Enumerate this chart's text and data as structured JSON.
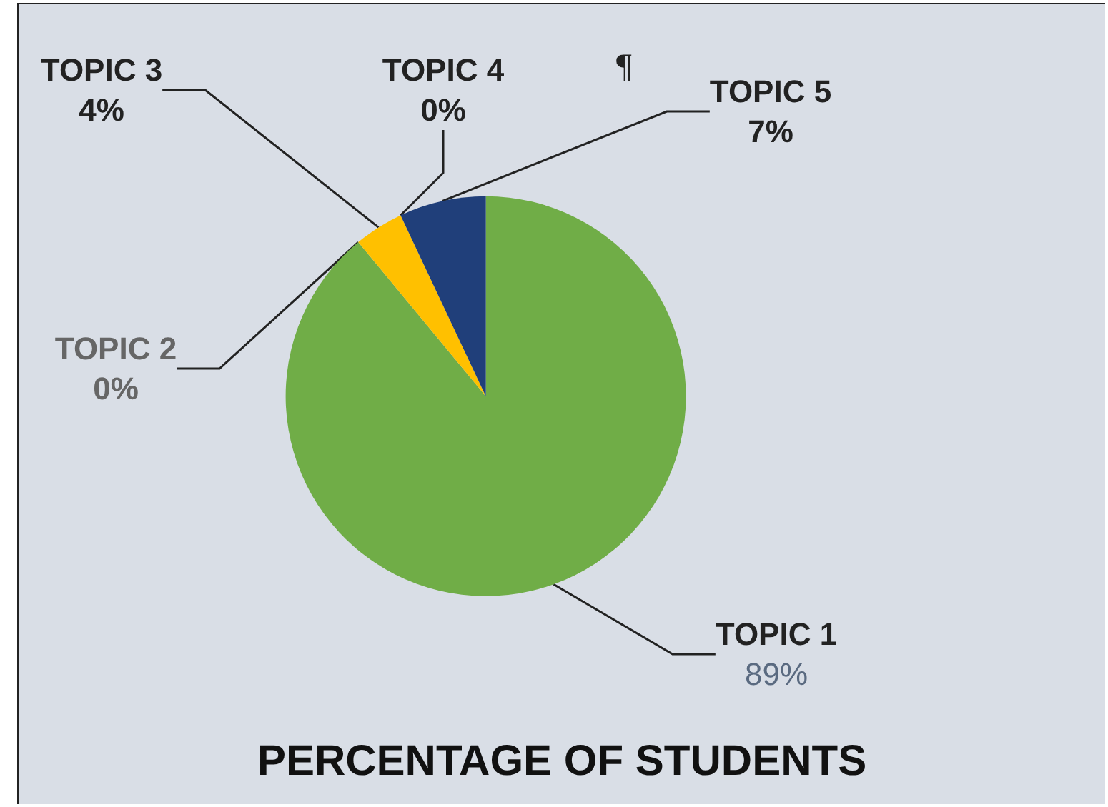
{
  "chart_data": {
    "type": "pie",
    "title": "PERCENTAGE OF STUDENTS",
    "categories": [
      "TOPIC 1",
      "TOPIC 2",
      "TOPIC 3",
      "TOPIC 4",
      "TOPIC 5"
    ],
    "values": [
      89,
      0,
      4,
      0,
      7
    ],
    "value_labels": [
      "89%",
      "0%",
      "4%",
      "0%",
      "7%"
    ],
    "colors": [
      "#70ad47",
      "#a5a5a5",
      "#ffc000",
      "#5b9bd5",
      "#203f7a"
    ],
    "annotations": [
      "¶"
    ],
    "legend": false
  }
}
